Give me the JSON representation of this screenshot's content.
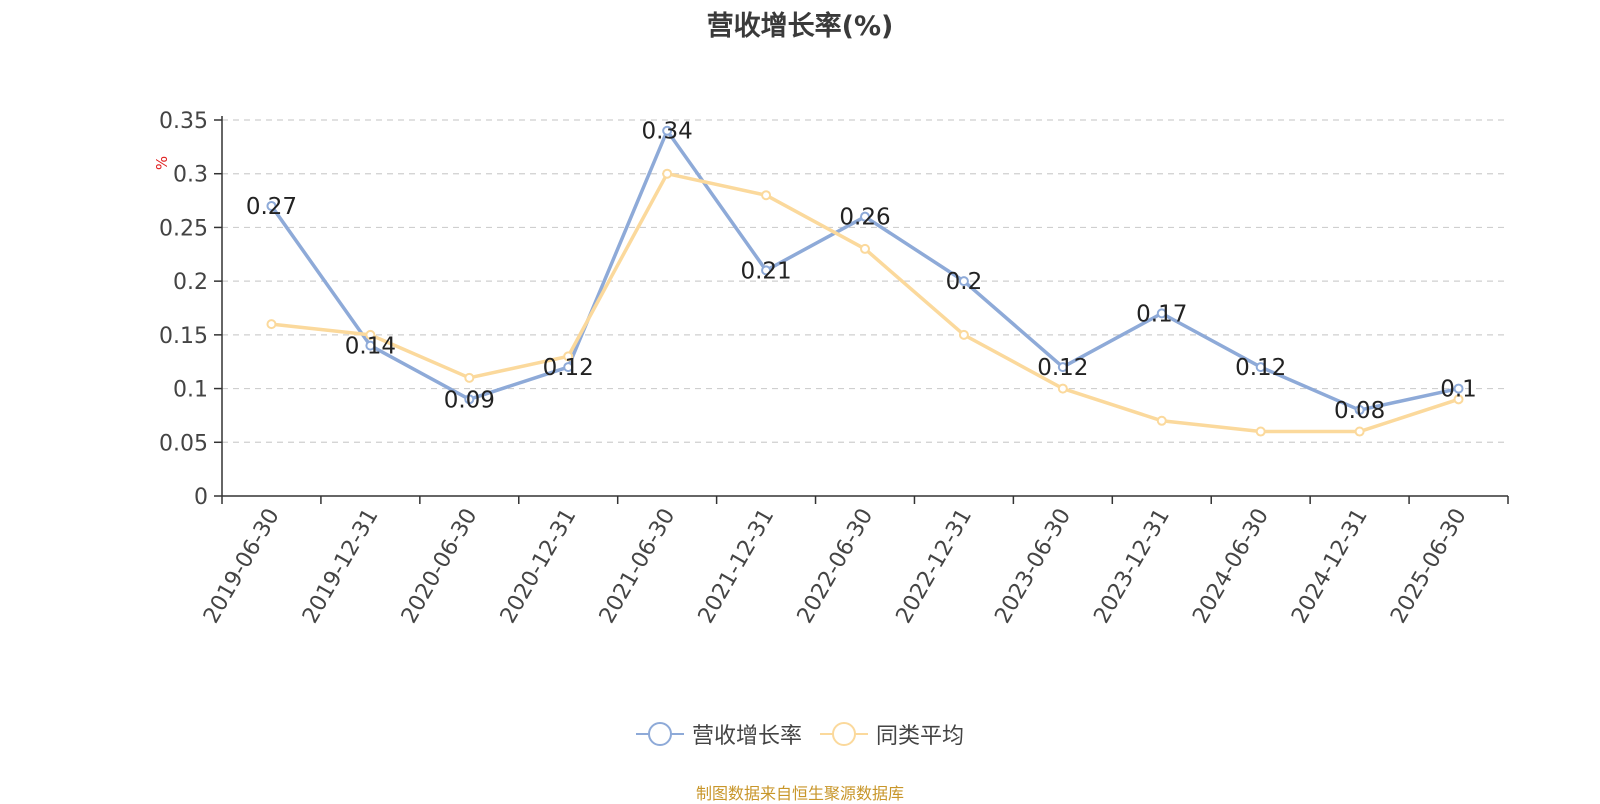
{
  "title": "营收增长率(%)",
  "source": "制图数据来自恒生聚源数据库",
  "chart_data": {
    "type": "line",
    "title": "营收增长率(%)",
    "ylabel": "%",
    "xlabel": "",
    "ylim": [
      0,
      0.35
    ],
    "yticks": [
      "0",
      "0.05",
      "0.1",
      "0.15",
      "0.2",
      "0.25",
      "0.3",
      "0.35"
    ],
    "grid": true,
    "legend_position": "bottom-center",
    "categories": [
      "2019-06-30",
      "2019-12-31",
      "2020-06-30",
      "2020-12-31",
      "2021-06-30",
      "2021-12-31",
      "2022-06-30",
      "2022-12-31",
      "2023-06-30",
      "2023-12-31",
      "2024-06-30",
      "2024-12-31",
      "2025-06-30"
    ],
    "series": [
      {
        "name": "营收增长率",
        "color": "#8eaad8",
        "values": [
          0.27,
          0.14,
          0.09,
          0.12,
          0.34,
          0.21,
          0.26,
          0.2,
          0.12,
          0.17,
          0.12,
          0.08,
          0.1
        ],
        "labels": [
          "0.27",
          "0.14",
          "0.09",
          "0.12",
          "0.34",
          "0.21",
          "0.26",
          "0.2",
          "0.12",
          "0.17",
          "0.12",
          "0.08",
          "0.1"
        ]
      },
      {
        "name": "同类平均",
        "color": "#fbd99c",
        "values": [
          0.16,
          0.15,
          0.11,
          0.13,
          0.3,
          0.28,
          0.23,
          0.15,
          0.1,
          0.07,
          0.06,
          0.06,
          0.09
        ]
      }
    ]
  }
}
